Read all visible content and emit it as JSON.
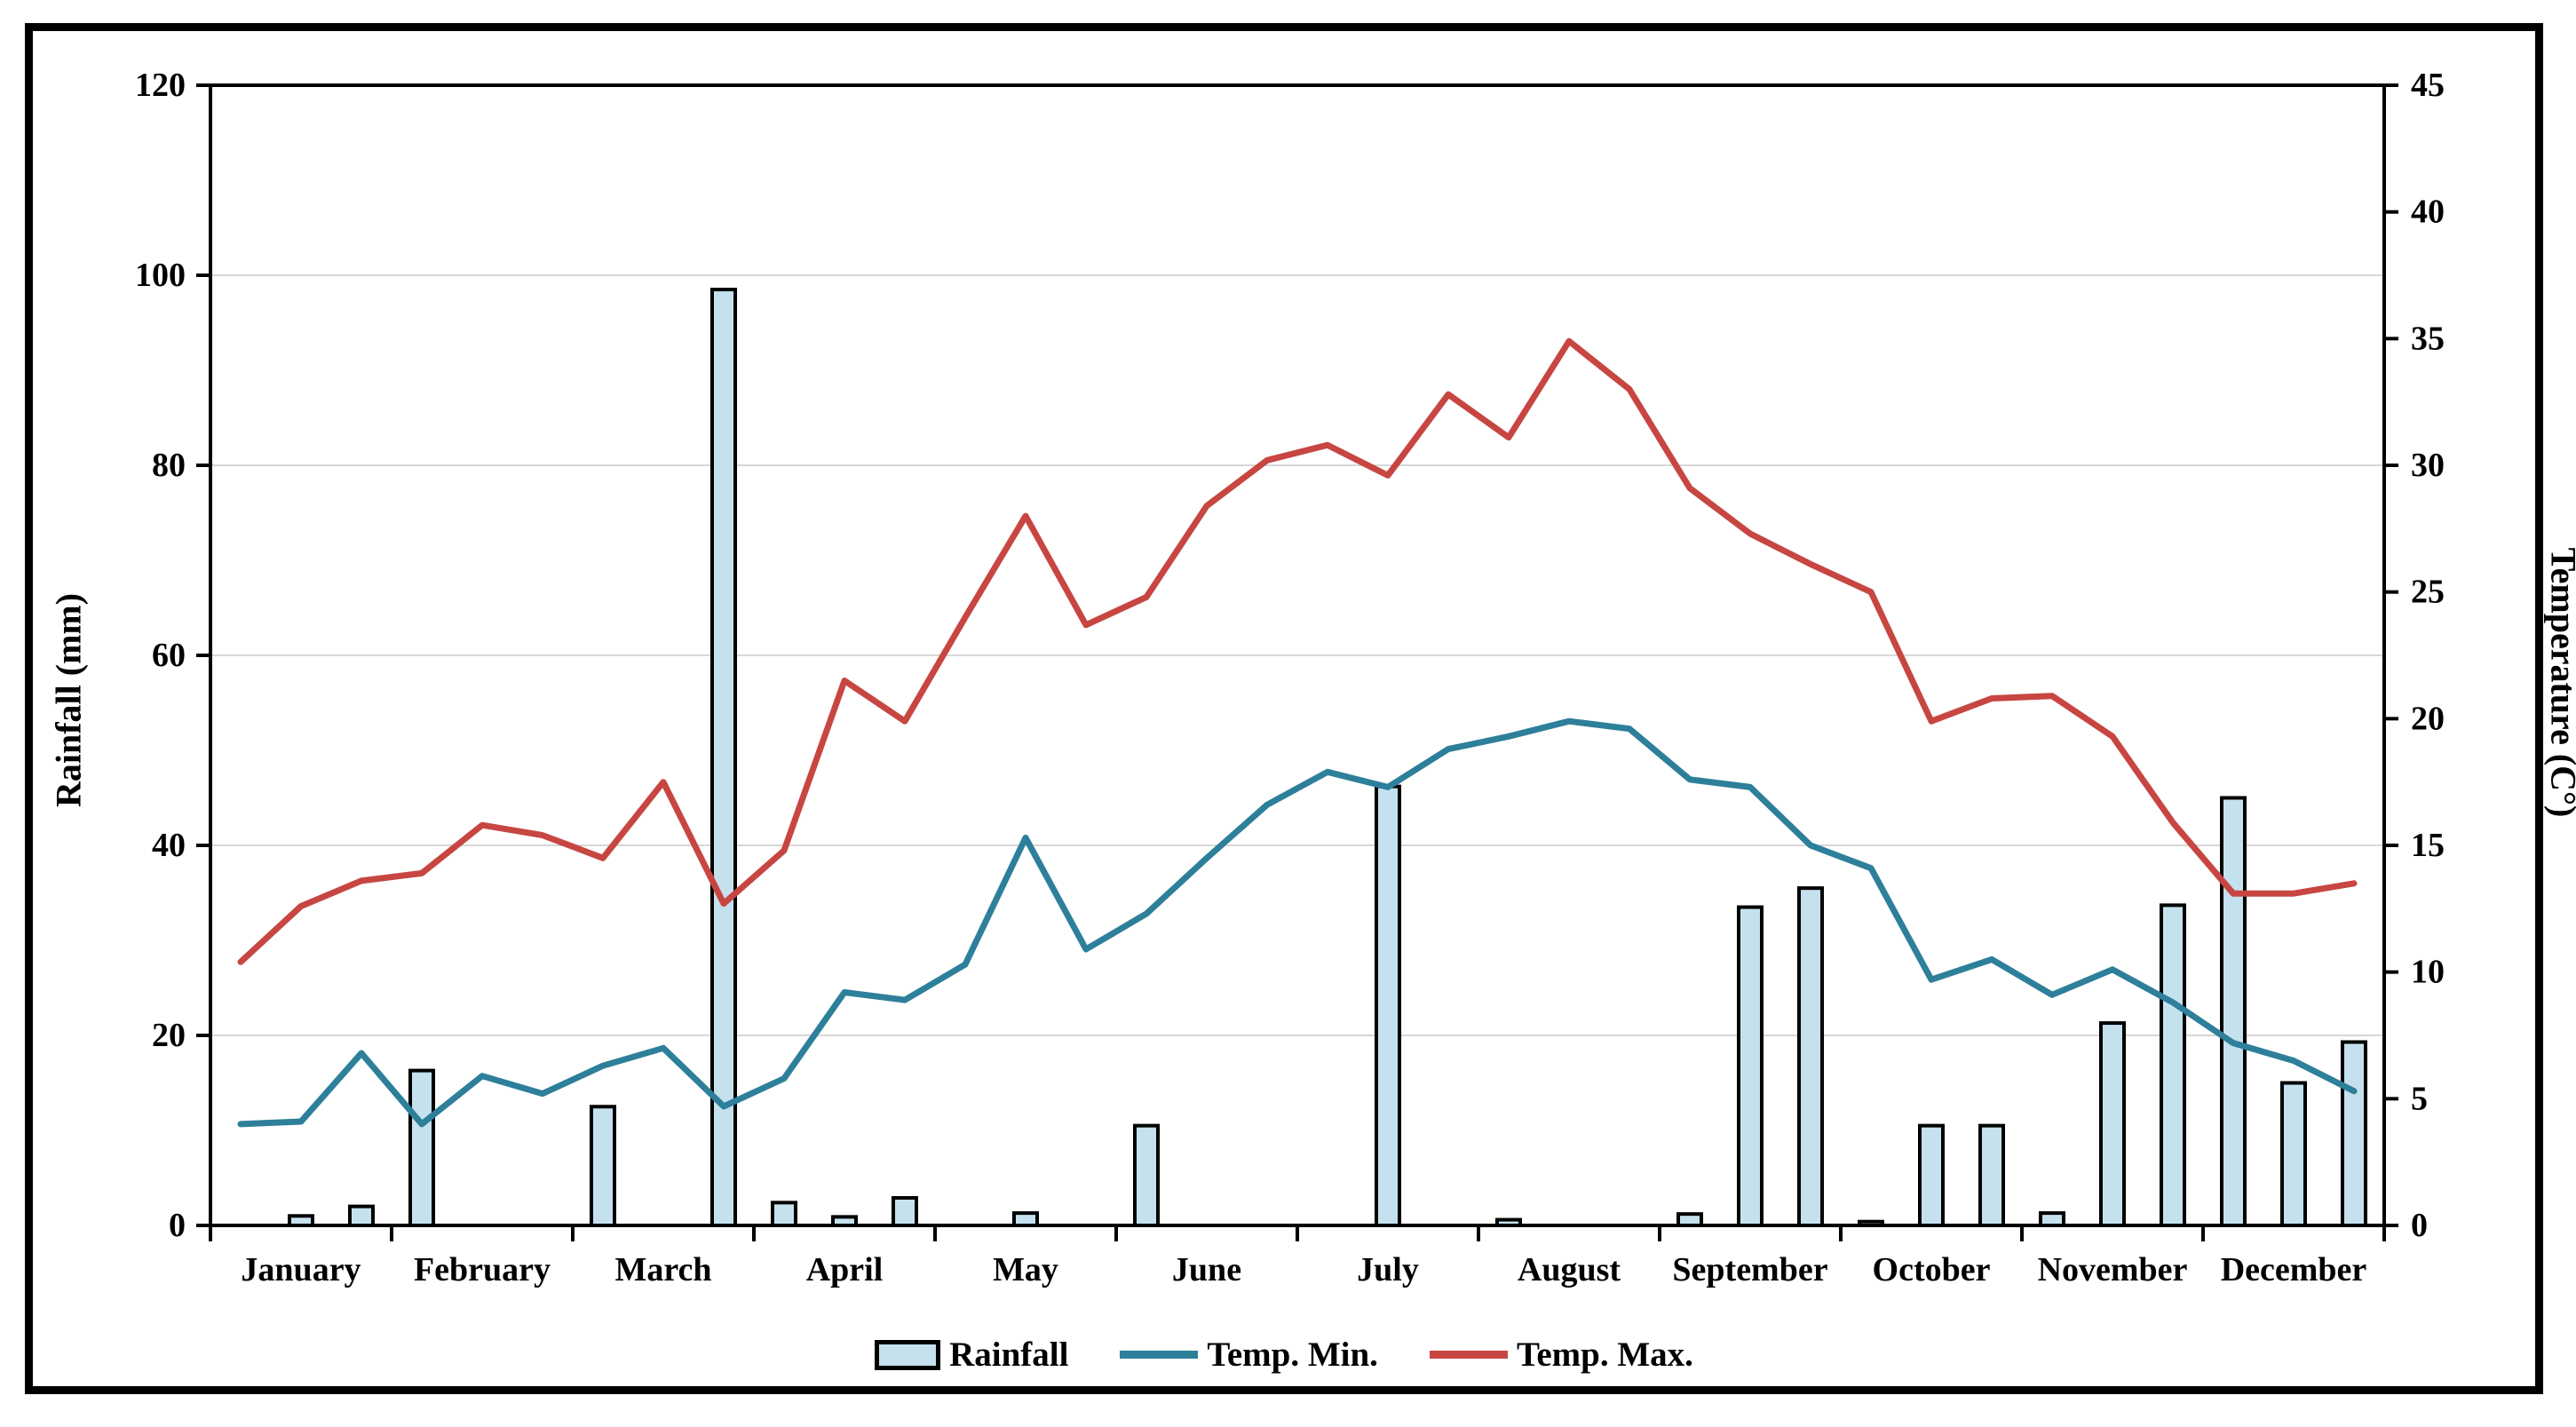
{
  "chart_data": {
    "type": "combo-bar-line",
    "title": "",
    "months": [
      "January",
      "February",
      "March",
      "April",
      "May",
      "June",
      "July",
      "August",
      "September",
      "October",
      "November",
      "December"
    ],
    "points_per_month": 3,
    "left_axis": {
      "label": "Rainfall (mm)",
      "min": 0,
      "max": 120,
      "tick_step": 20,
      "tick_labels": [
        "0",
        "20",
        "40",
        "60",
        "80",
        "100",
        "120"
      ]
    },
    "right_axis": {
      "label": "Temperature (C°)",
      "min": 0,
      "max": 45,
      "tick_step": 5,
      "tick_labels": [
        "0",
        "5",
        "10",
        "15",
        "20",
        "25",
        "30",
        "35",
        "40",
        "45"
      ]
    },
    "grid": {
      "horizontal_every_mm": 20,
      "vertical": false,
      "color": "#d7d7d7"
    },
    "legend_position": "bottom-center",
    "series": [
      {
        "name": "Rainfall",
        "type": "bar",
        "axis": "left",
        "fill_color": "#c5e1ee",
        "border_color": "#000000",
        "values": [
          0,
          1,
          2,
          16.3,
          0,
          0,
          12.5,
          0,
          98.5,
          2.4,
          0.9,
          2.9,
          0,
          1.3,
          0,
          10.5,
          0,
          0,
          0,
          46.2,
          0,
          0.6,
          0,
          0,
          1.2,
          33.5,
          35.5,
          0.4,
          10.5,
          10.5,
          1.3,
          21.3,
          33.7,
          45,
          15,
          19.3
        ]
      },
      {
        "name": "Temp. Min.",
        "type": "line",
        "axis": "right",
        "color": "#2d7f9a",
        "values": [
          4.0,
          4.1,
          6.8,
          4.0,
          5.9,
          5.2,
          6.3,
          7.0,
          4.7,
          5.8,
          9.2,
          8.9,
          10.3,
          15.3,
          10.9,
          12.3,
          14.5,
          16.6,
          17.9,
          17.3,
          18.8,
          19.3,
          19.9,
          19.6,
          17.6,
          17.3,
          15.0,
          14.1,
          9.7,
          10.5,
          9.1,
          10.1,
          8.8,
          7.2,
          6.5,
          5.3
        ]
      },
      {
        "name": "Temp. Max.",
        "type": "line",
        "axis": "right",
        "color": "#c74642",
        "values": [
          10.4,
          12.6,
          13.6,
          13.9,
          15.8,
          15.4,
          14.5,
          17.5,
          12.7,
          14.8,
          21.5,
          19.9,
          24.0,
          28.0,
          23.7,
          24.8,
          28.4,
          30.2,
          30.8,
          29.6,
          32.8,
          31.1,
          34.9,
          33.0,
          29.1,
          27.3,
          26.1,
          25.0,
          19.9,
          20.8,
          20.9,
          19.3,
          15.9,
          13.1,
          13.1,
          13.5
        ]
      }
    ],
    "legend": {
      "rainfall_label": "Rainfall",
      "temp_min_label": "Temp. Min.",
      "temp_max_label": "Temp. Max."
    }
  }
}
